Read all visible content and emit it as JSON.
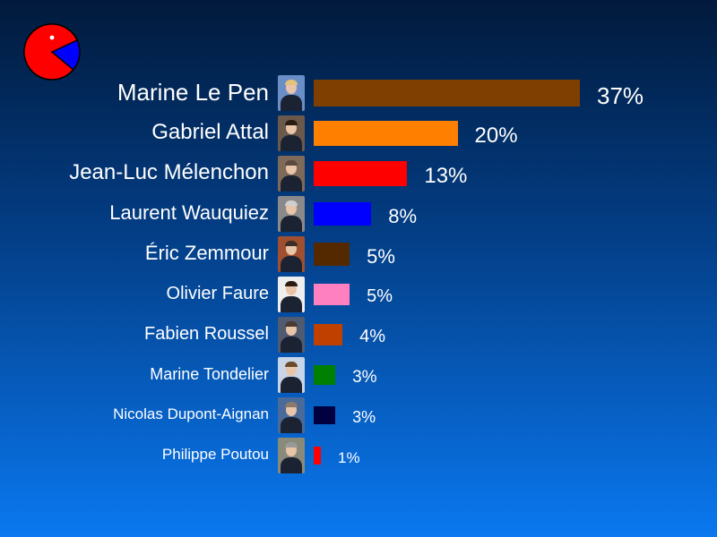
{
  "logo": {
    "icon": "pacman-pie-icon",
    "colors": [
      "#ff0000",
      "#0000ff"
    ]
  },
  "chart_data": {
    "type": "bar",
    "orientation": "horizontal",
    "unit": "%",
    "xlim": [
      0,
      37
    ],
    "categories": [
      "Marine Le Pen",
      "Gabriel Attal",
      "Jean-Luc Mélenchon",
      "Laurent Wauquiez",
      "Éric Zemmour",
      "Olivier Faure",
      "Fabien Roussel",
      "Marine Tondelier",
      "Nicolas Dupont-Aignan",
      "Philippe Poutou"
    ],
    "values": [
      37,
      20,
      13,
      8,
      5,
      5,
      4,
      3,
      3,
      1
    ],
    "labels": [
      "37%",
      "20%",
      "13%",
      "8%",
      "5%",
      "5%",
      "4%",
      "3%",
      "3%",
      "1%"
    ],
    "colors": [
      "#7f3f00",
      "#ff8000",
      "#ff0000",
      "#0000ff",
      "#542900",
      "#ff80c0",
      "#c04000",
      "#008000",
      "#000040",
      "#ff0000"
    ],
    "photo_icons": [
      "candidate-photo-le-pen-icon",
      "candidate-photo-attal-icon",
      "candidate-photo-melenchon-icon",
      "candidate-photo-wauquiez-icon",
      "candidate-photo-zemmour-icon",
      "candidate-photo-faure-icon",
      "candidate-photo-roussel-icon",
      "candidate-photo-tondelier-icon",
      "candidate-photo-dupont-aignan-icon",
      "candidate-photo-poutou-icon"
    ],
    "grid": false,
    "legend": "none"
  }
}
